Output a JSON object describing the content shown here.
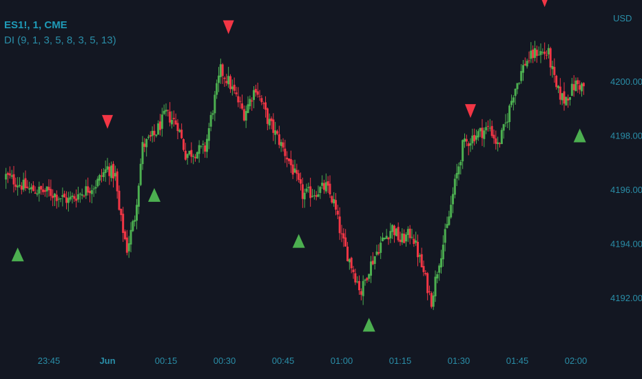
{
  "header": {
    "symbol": "ES1!, 1, CME",
    "indicator": "DI (9, 1, 3, 5, 8, 3, 5, 13)"
  },
  "colors": {
    "background": "#131722",
    "up": "#4caf50",
    "down": "#f23645",
    "axis_text": "#2a8ea8"
  },
  "chart_data": {
    "type": "candlestick",
    "currency_label": "USD",
    "y_ticks": [
      "4192.00",
      "4194.00",
      "4196.00",
      "4198.00",
      "4200.00"
    ],
    "ylim": [
      4190.3,
      4202.6
    ],
    "x_ticks": [
      "23:45",
      "Jun",
      "00:15",
      "00:30",
      "00:45",
      "01:00",
      "01:15",
      "01:30",
      "01:45",
      "02:00"
    ],
    "x_tick_bold": [
      false,
      true,
      false,
      false,
      false,
      false,
      false,
      false,
      false,
      false
    ],
    "x_tick_times": [
      "23:45",
      "00:00",
      "00:15",
      "00:30",
      "00:45",
      "01:00",
      "01:15",
      "01:30",
      "01:45",
      "02:00"
    ],
    "interval": "1 min",
    "close_anchors": [
      [
        "23:34",
        4196.5
      ],
      [
        "23:40",
        4196.0
      ],
      [
        "23:45",
        4195.9
      ],
      [
        "23:50",
        4195.6
      ],
      [
        "23:57",
        4196.2
      ],
      [
        "00:00",
        4196.8
      ],
      [
        "00:02",
        4196.5
      ],
      [
        "00:03",
        4195.2
      ],
      [
        "00:05",
        4193.8
      ],
      [
        "00:07",
        4195.0
      ],
      [
        "00:09",
        4197.6
      ],
      [
        "00:12",
        4198.0
      ],
      [
        "00:15",
        4198.8
      ],
      [
        "00:18",
        4198.4
      ],
      [
        "00:20",
        4197.3
      ],
      [
        "00:25",
        4197.5
      ],
      [
        "00:27",
        4199.0
      ],
      [
        "00:29",
        4200.4
      ],
      [
        "00:31",
        4200.0
      ],
      [
        "00:33",
        4199.4
      ],
      [
        "00:35",
        4198.8
      ],
      [
        "00:38",
        4199.8
      ],
      [
        "00:41",
        4198.6
      ],
      [
        "00:44",
        4197.8
      ],
      [
        "00:47",
        4196.9
      ],
      [
        "00:50",
        4195.8
      ],
      [
        "00:53",
        4195.9
      ],
      [
        "00:56",
        4196.1
      ],
      [
        "00:58",
        4195.5
      ],
      [
        "01:00",
        4194.2
      ],
      [
        "01:03",
        4193.0
      ],
      [
        "01:05",
        4192.2
      ],
      [
        "01:07",
        4193.1
      ],
      [
        "01:10",
        4194.0
      ],
      [
        "01:13",
        4194.6
      ],
      [
        "01:15",
        4194.1
      ],
      [
        "01:18",
        4194.4
      ],
      [
        "01:21",
        4192.9
      ],
      [
        "01:23",
        4191.9
      ],
      [
        "01:25",
        4193.4
      ],
      [
        "01:27",
        4194.6
      ],
      [
        "01:29",
        4196.2
      ],
      [
        "01:31",
        4197.6
      ],
      [
        "01:34",
        4198.0
      ],
      [
        "01:38",
        4198.3
      ],
      [
        "01:40",
        4197.6
      ],
      [
        "01:42",
        4198.4
      ],
      [
        "01:44",
        4199.6
      ],
      [
        "01:47",
        4200.7
      ],
      [
        "01:50",
        4201.1
      ],
      [
        "01:53",
        4201.0
      ],
      [
        "01:55",
        4199.7
      ],
      [
        "01:57",
        4199.3
      ],
      [
        "02:00",
        4199.9
      ],
      [
        "02:02",
        4199.8
      ]
    ],
    "signals_up": [
      {
        "time": "23:37",
        "value": 4193.6
      },
      {
        "time": "00:12",
        "value": 4195.8
      },
      {
        "time": "00:49",
        "value": 4194.1
      },
      {
        "time": "01:07",
        "value": 4191.0
      },
      {
        "time": "02:01",
        "value": 4198.0
      }
    ],
    "signals_down": [
      {
        "time": "00:00",
        "value": 4198.5
      },
      {
        "time": "00:31",
        "value": 4202.0
      },
      {
        "time": "01:33",
        "value": 4198.9
      },
      {
        "time": "01:52",
        "value": 4203.0
      }
    ]
  }
}
